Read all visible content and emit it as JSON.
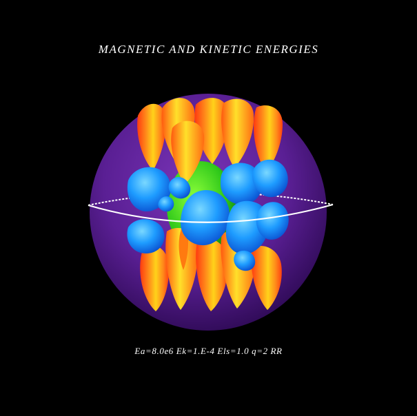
{
  "figure": {
    "title": "MAGNETIC AND KINETIC ENERGIES",
    "parameters": "Ea=8.0e6 Ek=1.E-4 Els=1.0 q=2 RR"
  },
  "colors": {
    "background": "#000000",
    "outer_sphere": "#5a1a8e",
    "inner_core": "#33d11a",
    "magnetic_energy_isosurface": "#ff7a10",
    "kinetic_energy_isosurface": "#1a8cff",
    "equator_ring": "#ffffff"
  }
}
